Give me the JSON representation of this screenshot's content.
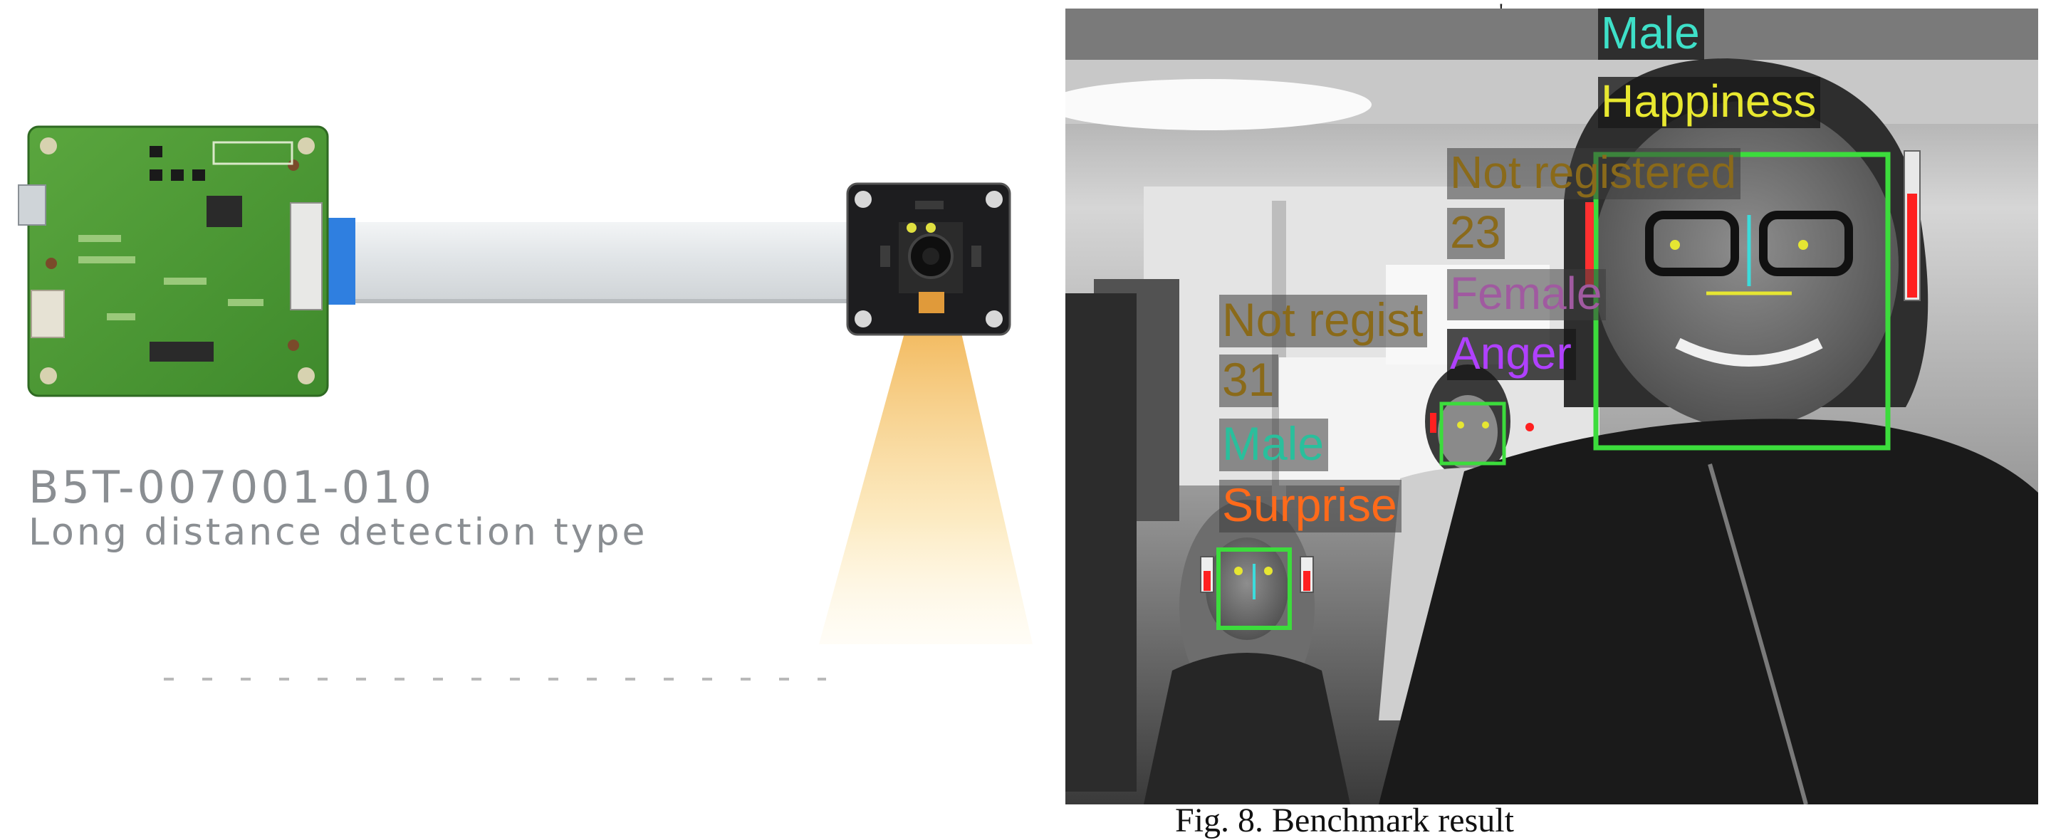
{
  "product": {
    "model_number": "B5T-007001-010",
    "description": "Long distance detection type"
  },
  "detections": {
    "main": {
      "name": "Not registered",
      "gender": "Male",
      "expression": "Happiness"
    },
    "middle": {
      "name": "Not registered",
      "age": "23",
      "gender": "Female",
      "expression": "Anger"
    },
    "left": {
      "name": "Not regist",
      "age": "31",
      "gender": "Male",
      "expression": "Surprise"
    }
  },
  "colors": {
    "box_green": "#3cdc3c",
    "male": "#3ee0c8",
    "happiness": "#e8e830",
    "anger": "#b040ff",
    "surprise": "#ff6a1a",
    "not_registered": "#8a6a1a",
    "female": "#a05aa0",
    "age": "#8a6a1a",
    "male_small": "#2abf9c"
  },
  "caption": "Fig. 8. Benchmark result"
}
